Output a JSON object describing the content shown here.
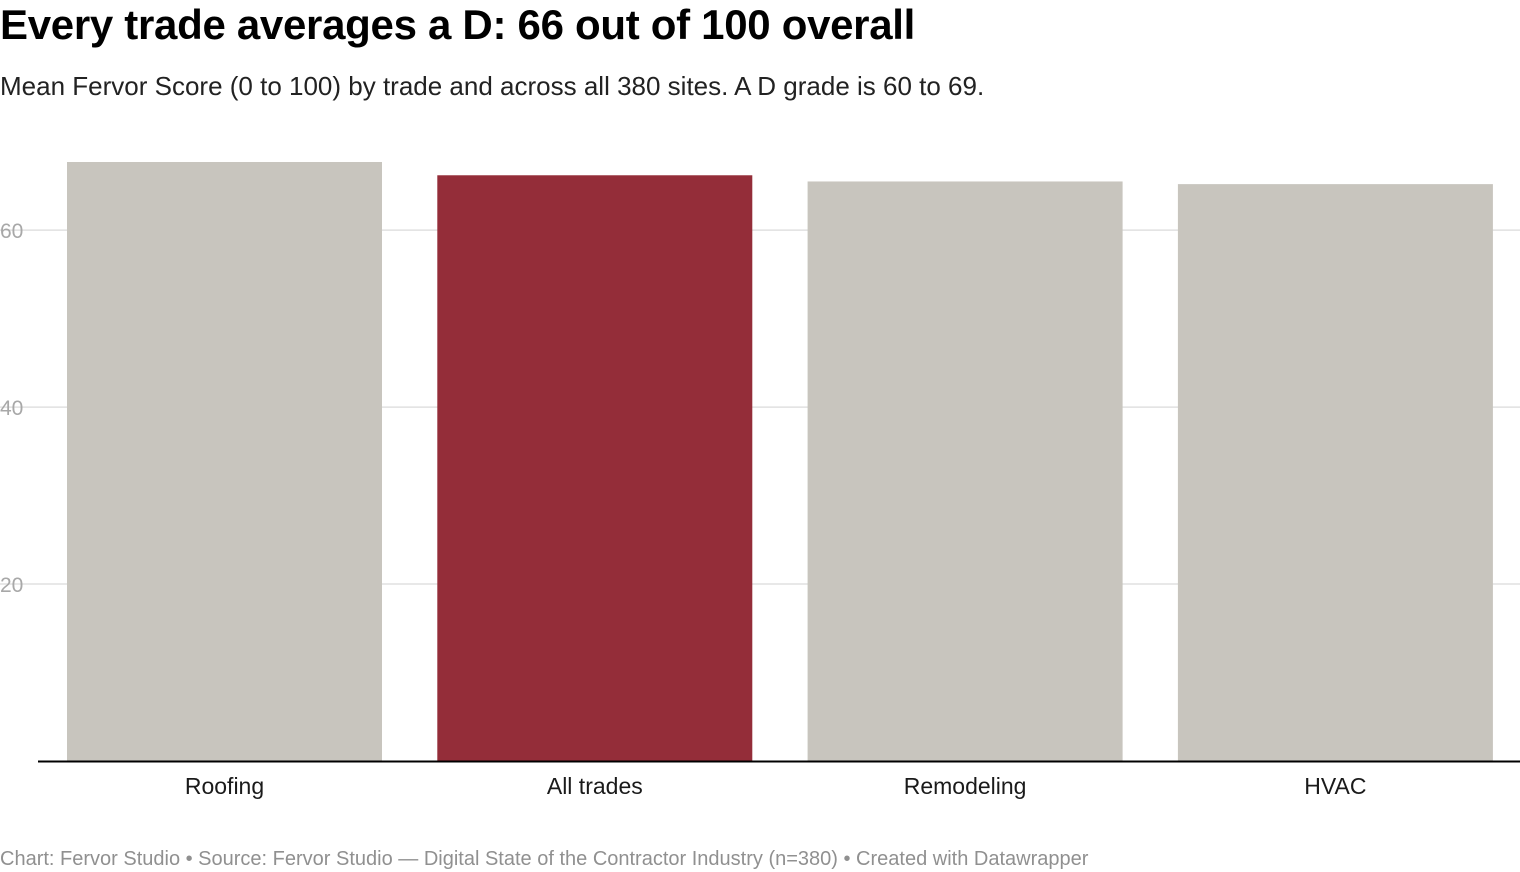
{
  "title": "Every trade averages a D: 66 out of 100 overall",
  "subtitle": "Mean Fervor Score (0 to 100) by trade and across all 380 sites. A D grade is 60 to 69.",
  "footer": "Chart: Fervor Studio • Source: Fervor Studio — Digital State of the Contractor Industry (n=380) • Created with Datawrapper",
  "colors": {
    "bar": "#c8c5be",
    "highlight": "#942d39",
    "grid": "#e0e0e0",
    "axis": "#000000"
  },
  "chart_data": {
    "type": "bar",
    "categories": [
      "Roofing",
      "All trades",
      "Remodeling",
      "HVAC"
    ],
    "values": [
      67.7,
      66.2,
      65.5,
      65.2
    ],
    "highlight": "All trades",
    "title": "Every trade averages a D: 66 out of 100 overall",
    "subtitle": "Mean Fervor Score (0 to 100) by trade and across all 380 sites. A D grade is 60 to 69.",
    "xlabel": "",
    "ylabel": "",
    "ylim": [
      0,
      67.7
    ],
    "yticks": [
      20,
      40,
      60
    ],
    "ytick_labels": [
      "20",
      "40",
      "60"
    ],
    "grid": true,
    "legend": "none"
  }
}
